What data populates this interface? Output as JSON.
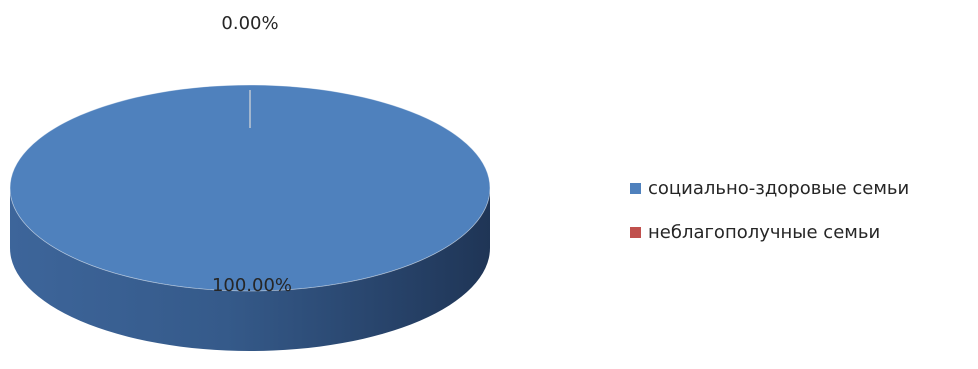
{
  "chart_data": {
    "type": "pie",
    "style": "3d",
    "categories": [
      "социально-здоровые семьи",
      "неблагополучные семьи"
    ],
    "values": [
      100.0,
      0.0
    ],
    "data_labels": [
      "100.00%",
      "0.00%"
    ],
    "colors": [
      "#4F81BD",
      "#C0504D"
    ],
    "legend_position": "right"
  }
}
